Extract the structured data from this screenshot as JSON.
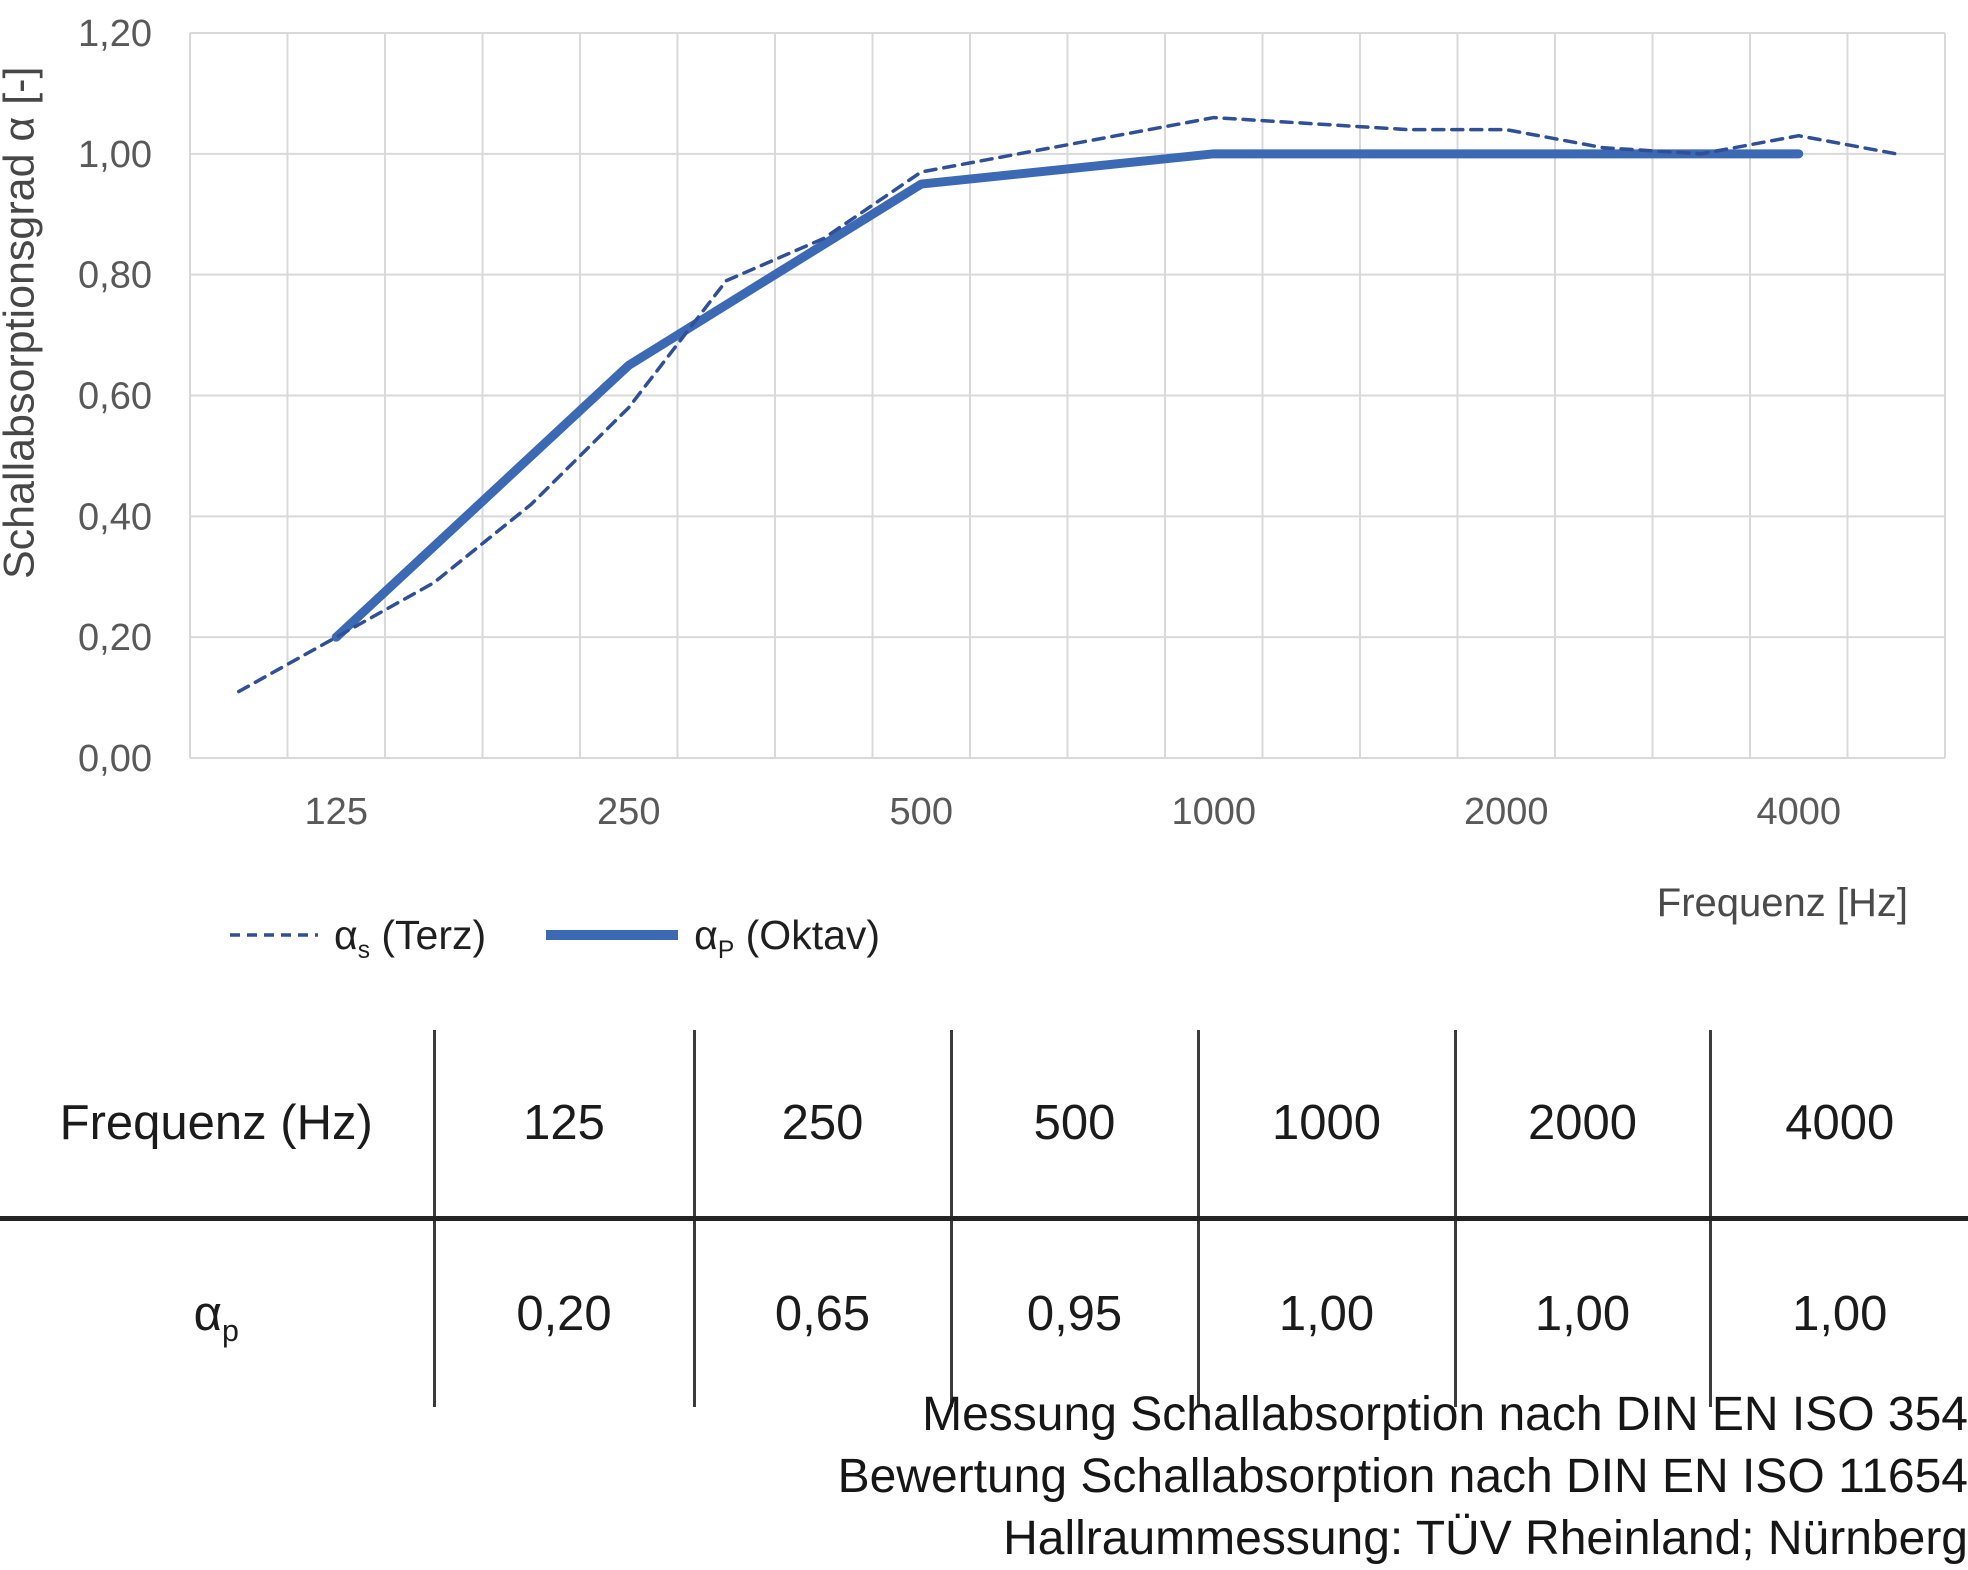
{
  "chart_data": {
    "type": "line",
    "title": "",
    "xlabel": "Frequenz [Hz]",
    "ylabel": "Schallabsorptionsgrad α [-]",
    "x_scale": "logarithmic (third-octave categories)",
    "grid": true,
    "legend_position": "bottom-left",
    "ylim": [
      0,
      1.2
    ],
    "y_ticks": [
      "0,00",
      "0,20",
      "0,40",
      "0,60",
      "0,80",
      "1,00",
      "1,20"
    ],
    "categories": [
      100,
      125,
      160,
      200,
      250,
      315,
      400,
      500,
      630,
      800,
      1000,
      1250,
      1600,
      2000,
      2500,
      3150,
      4000,
      5000
    ],
    "x_tick_labels": [
      "125",
      "250",
      "500",
      "1000",
      "2000",
      "4000"
    ],
    "series": [
      {
        "name": "αs (Terz)",
        "style": "dashed",
        "color": "#2f4f97",
        "x": [
          100,
          125,
          160,
          200,
          250,
          315,
          400,
          500,
          630,
          800,
          1000,
          1250,
          1600,
          2000,
          2500,
          3150,
          4000,
          5000
        ],
        "values": [
          0.11,
          0.2,
          0.29,
          0.42,
          0.58,
          0.79,
          0.86,
          0.97,
          1.0,
          1.03,
          1.06,
          1.05,
          1.04,
          1.04,
          1.01,
          1.0,
          1.03,
          1.0
        ]
      },
      {
        "name": "αP (Oktav)",
        "style": "solid",
        "color": "#3c69b3",
        "x": [
          125,
          250,
          500,
          1000,
          2000,
          4000
        ],
        "values": [
          0.2,
          0.65,
          0.95,
          1.0,
          1.0,
          1.0
        ]
      }
    ],
    "legend_items": [
      {
        "sym": "α",
        "sub": "s",
        "rest": " (Terz)"
      },
      {
        "sym": "α",
        "sub": "P",
        "rest": " (Oktav)"
      }
    ],
    "colors": {
      "gridline": "#d9d9d9",
      "tick_text": "#595959",
      "axis_label_text": "#4a4a4a"
    }
  },
  "table": {
    "header_row": [
      "Frequenz (Hz)",
      "125",
      "250",
      "500",
      "1000",
      "2000",
      "4000"
    ],
    "row_label": {
      "sym": "α",
      "sub": "p"
    },
    "values": [
      "0,20",
      "0,65",
      "0,95",
      "1,00",
      "1,00",
      "1,00"
    ]
  },
  "footer": {
    "lines": [
      "Messung Schallabsorption nach DIN EN ISO 354",
      "Bewertung Schallabsorption nach DIN EN ISO 11654",
      "Hallraummessung: TÜV Rheinland; Nürnberg"
    ]
  }
}
